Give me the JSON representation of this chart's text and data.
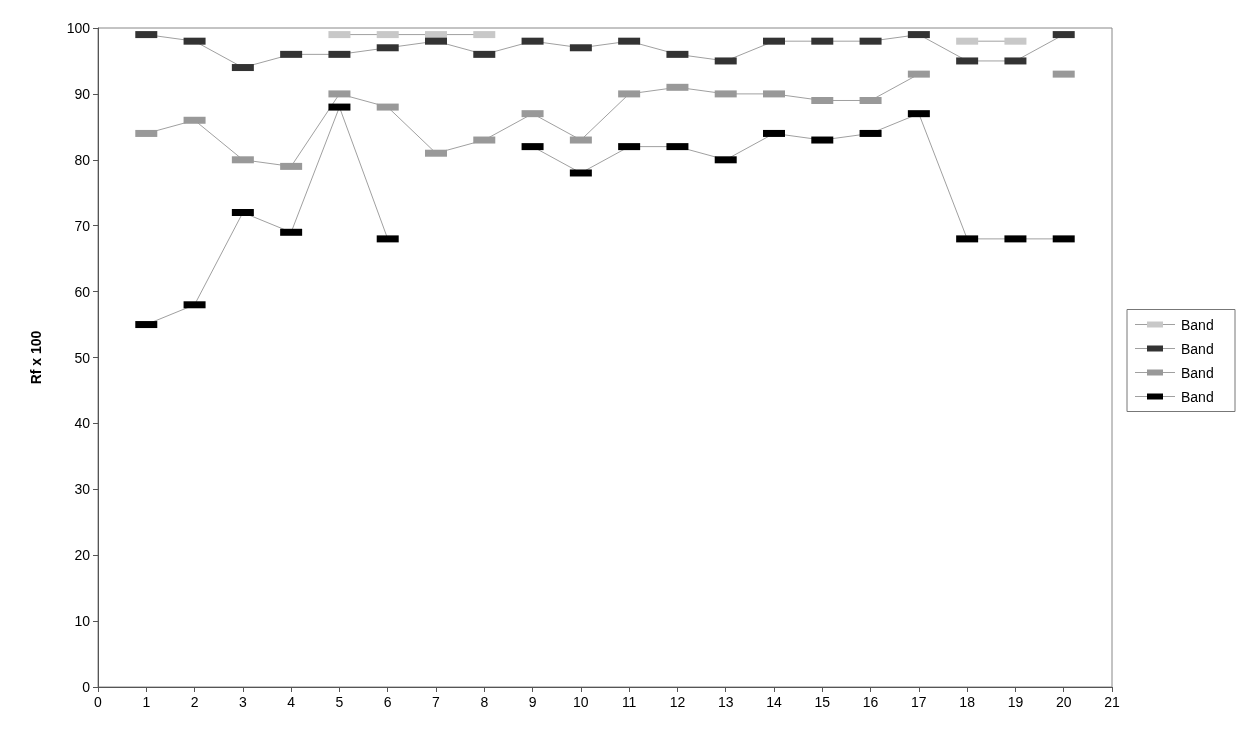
{
  "chart_data": {
    "type": "line",
    "ylabel": "Rf x 100",
    "x": [
      1,
      2,
      3,
      4,
      5,
      6,
      7,
      8,
      9,
      10,
      11,
      12,
      13,
      14,
      15,
      16,
      17,
      18,
      19,
      20
    ],
    "series": [
      {
        "name": "Band",
        "color": "#c8c8c8",
        "values": [
          null,
          null,
          null,
          null,
          99,
          99,
          99,
          99,
          null,
          null,
          null,
          null,
          null,
          null,
          null,
          null,
          null,
          98,
          98,
          null
        ]
      },
      {
        "name": "Band",
        "color": "#333333",
        "values": [
          99,
          98,
          94,
          96,
          96,
          97,
          98,
          96,
          98,
          97,
          98,
          96,
          95,
          98,
          98,
          98,
          99,
          95,
          95,
          99
        ]
      },
      {
        "name": "Band",
        "color": "#999999",
        "values": [
          84,
          86,
          80,
          79,
          90,
          88,
          81,
          83,
          87,
          83,
          90,
          91,
          90,
          90,
          89,
          89,
          93,
          null,
          null,
          93
        ]
      },
      {
        "name": "Band",
        "color": "#000000",
        "values": [
          55,
          58,
          72,
          69,
          88,
          68,
          null,
          null,
          82,
          78,
          82,
          82,
          80,
          84,
          83,
          84,
          87,
          68,
          68,
          68
        ]
      }
    ],
    "xlim": [
      0,
      21
    ],
    "xticks": [
      0,
      1,
      2,
      3,
      4,
      5,
      6,
      7,
      8,
      9,
      10,
      11,
      12,
      13,
      14,
      15,
      16,
      17,
      18,
      19,
      20,
      21
    ],
    "ylim": [
      0,
      100
    ],
    "yticks": [
      0,
      10,
      20,
      30,
      40,
      50,
      60,
      70,
      80,
      90,
      100
    ],
    "grid": false,
    "legend": "right",
    "marker": "square",
    "line_style": "solid"
  }
}
